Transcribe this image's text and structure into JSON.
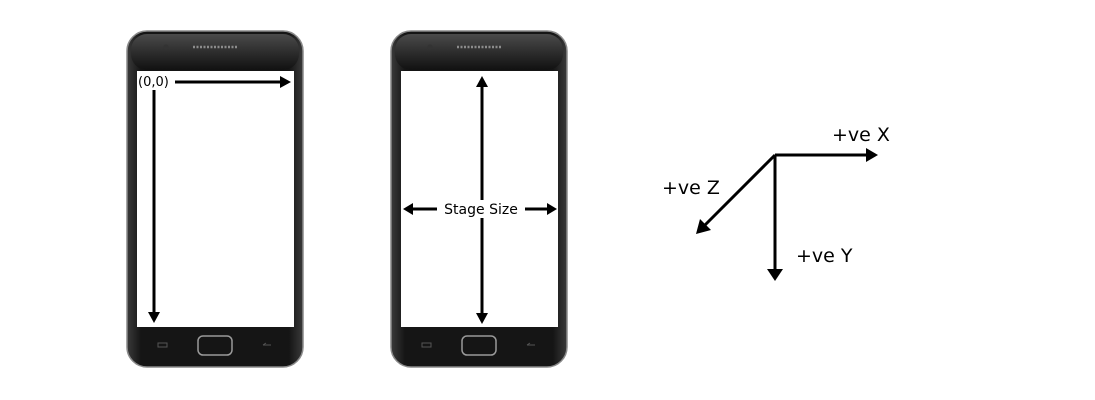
{
  "phones": [
    {
      "origin_label": "(0,0)"
    },
    {
      "stage_label": "Stage Size"
    }
  ],
  "axes": {
    "x_label": "+ve X",
    "y_label": "+ve Y",
    "z_label": "+ve Z"
  },
  "colors": {
    "phone_body": "#1c1c1c",
    "phone_edge": "#8a8a8a",
    "screen": "#ffffff",
    "arrow": "#000000"
  }
}
